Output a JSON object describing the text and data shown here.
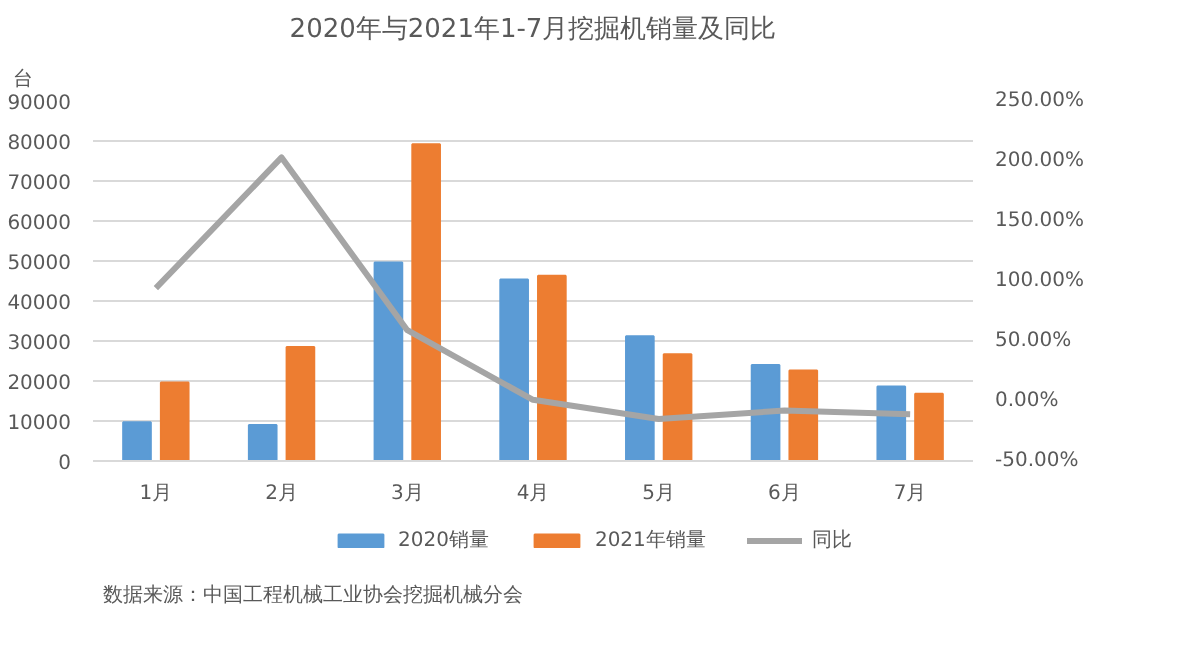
{
  "chart_data": {
    "type": "bar",
    "title": "2020年与2021年1-7月挖掘机销量及同比",
    "ylabel": "台",
    "categories": [
      "1月",
      "2月",
      "3月",
      "4月",
      "5月",
      "6月",
      "7月"
    ],
    "series": [
      {
        "name": "2020销量",
        "color": "#5b9bd5",
        "values": [
          9700,
          9000,
          49600,
          45400,
          31200,
          24000,
          18600
        ]
      },
      {
        "name": "2021年销量",
        "color": "#ed7d31",
        "values": [
          19600,
          28500,
          79200,
          46300,
          26700,
          22600,
          16800
        ]
      },
      {
        "name": "同比",
        "type": "line",
        "axis": "y2",
        "color": "#a5a5a5",
        "values": [
          94,
          203,
          59,
          1,
          -15,
          -8,
          -11
        ]
      }
    ],
    "ylim": [
      0,
      90000
    ],
    "yticks": [
      0,
      10000,
      20000,
      30000,
      40000,
      50000,
      60000,
      70000,
      80000,
      90000
    ],
    "y2lim": [
      -50,
      250
    ],
    "y2ticks": [
      {
        "value": -50,
        "label": "-50.00%"
      },
      {
        "value": 0,
        "label": "0.00%"
      },
      {
        "value": 50,
        "label": "50.00%"
      },
      {
        "value": 100,
        "label": "100.00%"
      },
      {
        "value": 150,
        "label": "150.00%"
      },
      {
        "value": 200,
        "label": "200.00%"
      },
      {
        "value": 250,
        "label": "250.00%"
      }
    ],
    "grid": "y",
    "legend": "bottom",
    "marker": "none",
    "annotations": [
      "数据来源：中国工程机械工业协会挖掘机械分会"
    ]
  }
}
